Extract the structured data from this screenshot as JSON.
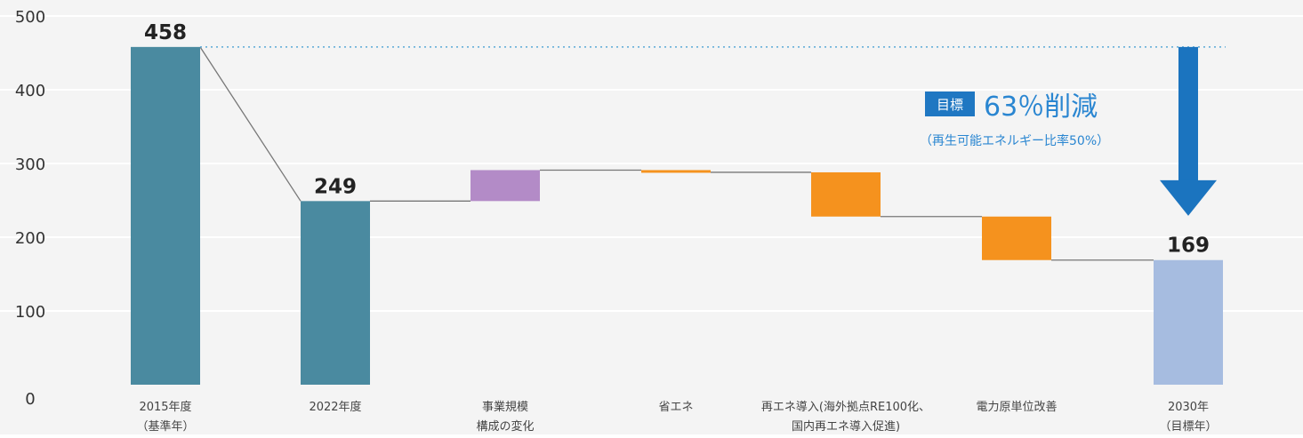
{
  "chart_data": {
    "type": "bar",
    "subtype": "waterfall",
    "title": "",
    "xlabel": "",
    "ylabel": "",
    "ylim": [
      0,
      500
    ],
    "y_ticks": [
      0,
      100,
      200,
      300,
      400,
      500
    ],
    "grid": true,
    "categories": [
      [
        "2015年度",
        "（基準年）"
      ],
      [
        "2022年度"
      ],
      [
        "事業規模",
        "構成の変化"
      ],
      [
        "省エネ"
      ],
      [
        "再エネ導入(海外拠点RE100化、",
        "国内再エネ導入促進)"
      ],
      [
        "電力原単位改善"
      ],
      [
        "2030年",
        "（目標年）"
      ]
    ],
    "bars": [
      {
        "kind": "total",
        "start": 0,
        "end": 458,
        "label": "458",
        "color": "#4a8aa0"
      },
      {
        "kind": "total",
        "start": 0,
        "end": 249,
        "label": "249",
        "color": "#4a8aa0"
      },
      {
        "kind": "increase",
        "start": 249,
        "end": 291,
        "label": "",
        "color": "#b38bc7"
      },
      {
        "kind": "decrease",
        "start": 291,
        "end": 288,
        "label": "",
        "color": "#f5921e"
      },
      {
        "kind": "decrease",
        "start": 288,
        "end": 228,
        "label": "",
        "color": "#f5921e"
      },
      {
        "kind": "decrease",
        "start": 228,
        "end": 169,
        "label": "",
        "color": "#f5921e"
      },
      {
        "kind": "total",
        "start": 0,
        "end": 169,
        "label": "169",
        "color": "#a6bce0"
      }
    ],
    "annotation": {
      "badge": "目標",
      "headline": "63％削減",
      "sub": "（再生可能エネルギー比率50%）",
      "arrow_from": 458,
      "arrow_to": 229,
      "badge_color": "#1f77c2",
      "text_color": "#2a86d1",
      "arrow_color": "#1b74bf",
      "reference_line_value": 458
    }
  }
}
